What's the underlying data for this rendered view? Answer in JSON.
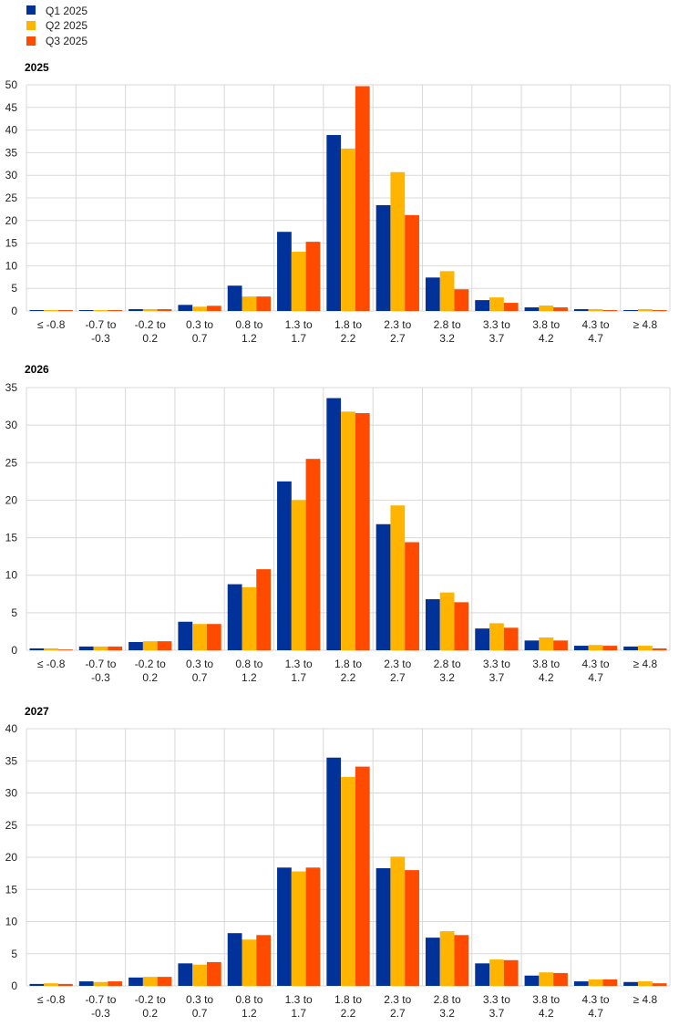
{
  "legend": [
    {
      "label": "Q1 2025",
      "color": "#003299"
    },
    {
      "label": "Q2 2025",
      "color": "#FFB400"
    },
    {
      "label": "Q3 2025",
      "color": "#FF4B00"
    }
  ],
  "chart_data": [
    {
      "type": "bar",
      "title": "2025",
      "categories": [
        "≤ -0.8",
        "-0.7 to -0.3",
        "-0.2 to 0.2",
        "0.3 to 0.7",
        "0.8 to 1.2",
        "1.3 to 1.7",
        "1.8 to 2.2",
        "2.3 to 2.7",
        "2.8 to 3.2",
        "3.3 to 3.7",
        "3.8 to 4.2",
        "4.3 to 4.7",
        "≥ 4.8"
      ],
      "ylim": [
        0,
        50
      ],
      "yticks": [
        0,
        5,
        10,
        15,
        20,
        25,
        30,
        35,
        40,
        45,
        50
      ],
      "grid": true,
      "legend_position": "top-left",
      "series": [
        {
          "name": "Q1 2025",
          "values": [
            0.2,
            0.2,
            0.4,
            1.35,
            5.6,
            17.5,
            38.9,
            23.4,
            7.4,
            2.4,
            0.8,
            0.4,
            0.2
          ]
        },
        {
          "name": "Q2 2025",
          "values": [
            0.2,
            0.2,
            0.4,
            0.95,
            3.2,
            13.1,
            35.9,
            30.7,
            8.8,
            3.0,
            1.2,
            0.4,
            0.4
          ]
        },
        {
          "name": "Q3 2025",
          "values": [
            0.2,
            0.2,
            0.4,
            1.15,
            3.2,
            15.3,
            49.7,
            21.2,
            4.8,
            1.8,
            0.8,
            0.2,
            0.2
          ]
        }
      ]
    },
    {
      "type": "bar",
      "title": "2026",
      "categories": [
        "≤ -0.8",
        "-0.7 to -0.3",
        "-0.2 to 0.2",
        "0.3 to 0.7",
        "0.8 to 1.2",
        "1.3 to 1.7",
        "1.8 to 2.2",
        "2.3 to 2.7",
        "2.8 to 3.2",
        "3.3 to 3.7",
        "3.8 to 4.2",
        "4.3 to 4.7",
        "≥ 4.8"
      ],
      "ylim": [
        0,
        35
      ],
      "yticks": [
        0,
        5,
        10,
        15,
        20,
        25,
        30,
        35
      ],
      "grid": true,
      "series": [
        {
          "name": "Q1 2025",
          "values": [
            0.25,
            0.5,
            1.1,
            3.8,
            8.8,
            22.5,
            33.6,
            16.8,
            6.8,
            2.9,
            1.3,
            0.6,
            0.5
          ]
        },
        {
          "name": "Q2 2025",
          "values": [
            0.25,
            0.5,
            1.2,
            3.5,
            8.4,
            20.0,
            31.8,
            19.3,
            7.7,
            3.6,
            1.7,
            0.7,
            0.6
          ]
        },
        {
          "name": "Q3 2025",
          "values": [
            0.1,
            0.5,
            1.2,
            3.5,
            10.8,
            25.5,
            31.6,
            14.4,
            6.4,
            3.0,
            1.3,
            0.6,
            0.25
          ]
        }
      ]
    },
    {
      "type": "bar",
      "title": "2027",
      "categories": [
        "≤ -0.8",
        "-0.7 to -0.3",
        "-0.2 to 0.2",
        "0.3 to 0.7",
        "0.8 to 1.2",
        "1.3 to 1.7",
        "1.8 to 2.2",
        "2.3 to 2.7",
        "2.8 to 3.2",
        "3.3 to 3.7",
        "3.8 to 4.2",
        "4.3 to 4.7",
        "≥ 4.8"
      ],
      "ylim": [
        0,
        40
      ],
      "yticks": [
        0,
        5,
        10,
        15,
        20,
        25,
        30,
        35,
        40
      ],
      "grid": true,
      "series": [
        {
          "name": "Q1 2025",
          "values": [
            0.3,
            0.7,
            1.3,
            3.5,
            8.2,
            18.4,
            35.5,
            18.3,
            7.5,
            3.5,
            1.6,
            0.7,
            0.6
          ]
        },
        {
          "name": "Q2 2025",
          "values": [
            0.4,
            0.6,
            1.4,
            3.3,
            7.2,
            17.8,
            32.5,
            20.1,
            8.5,
            4.1,
            2.1,
            1.0,
            0.7
          ]
        },
        {
          "name": "Q3 2025",
          "values": [
            0.3,
            0.7,
            1.4,
            3.7,
            7.9,
            18.4,
            34.1,
            18.0,
            7.9,
            4.0,
            2.0,
            1.0,
            0.4
          ]
        }
      ]
    }
  ]
}
